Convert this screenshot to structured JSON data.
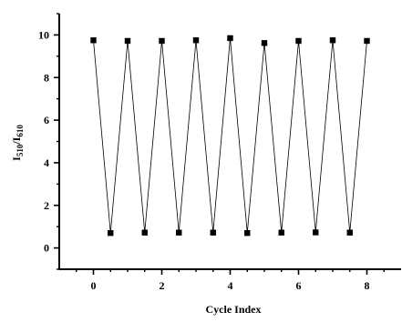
{
  "chart_data": {
    "type": "line",
    "xlabel": "Cycle Index",
    "ylabel": "I510/I610",
    "ylabel_parts": {
      "main": "I",
      "sub1": "510",
      "slash": "/I",
      "sub2": "610"
    },
    "xlim": [
      -1,
      9
    ],
    "ylim": [
      -1,
      11
    ],
    "xticks": [
      0,
      2,
      4,
      6,
      8
    ],
    "yticks": [
      0,
      2,
      4,
      6,
      8,
      10
    ],
    "minor_x": [
      -0.5,
      0.5,
      1,
      1.5,
      2.5,
      3,
      3.5,
      4.5,
      5,
      5.5,
      6.5,
      7,
      7.5,
      8.5
    ],
    "minor_y": [
      -1,
      1,
      3,
      5,
      7,
      9,
      11
    ],
    "marker": "square",
    "series": [
      {
        "x": [
          0,
          0.5,
          1,
          1.5,
          2,
          2.5,
          3,
          3.5,
          4,
          4.5,
          5,
          5.5,
          6,
          6.5,
          7,
          7.5,
          8
        ],
        "y": [
          9.75,
          0.7,
          9.72,
          0.72,
          9.72,
          0.72,
          9.75,
          0.72,
          9.85,
          0.7,
          9.62,
          0.72,
          9.72,
          0.73,
          9.75,
          0.72,
          9.72
        ]
      }
    ]
  }
}
